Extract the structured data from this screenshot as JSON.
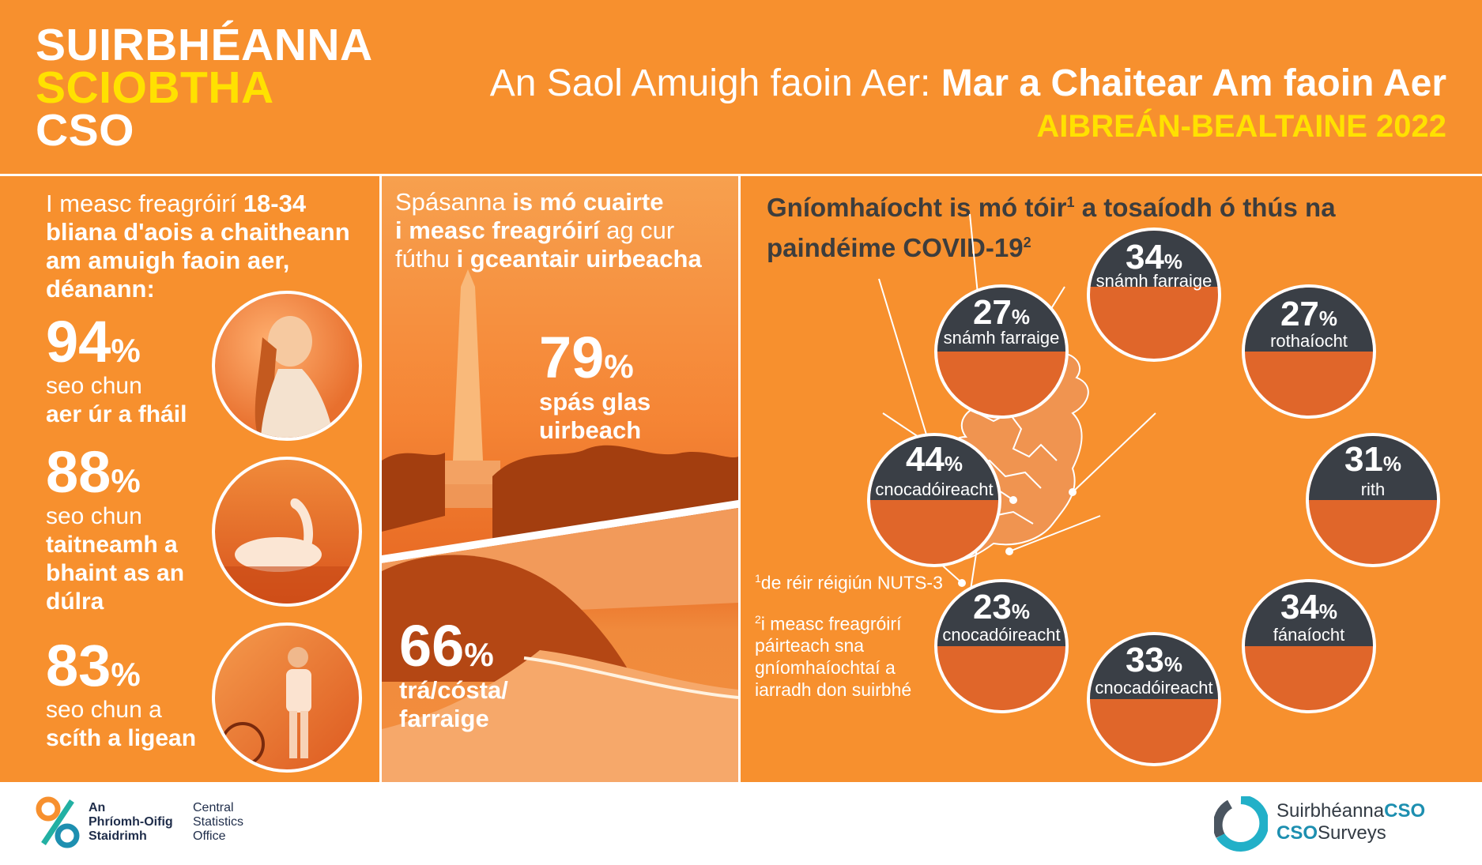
{
  "header": {
    "brand_line1": "SUIRBHÉANNA",
    "brand_line2": "SCIOBTHA",
    "brand_line3": "CSO",
    "title_regular": "An Saol Amuigh faoin Aer: ",
    "title_bold": "Mar a Chaitear Am faoin Aer",
    "subtitle": "AIBREÁN-BEALTAINE 2022"
  },
  "left": {
    "intro_part1": "I measc freagróirí ",
    "intro_bold": "18-34 bliana d'aois a chaitheann am amuigh faoin aer, déanann:",
    "stats": [
      {
        "value": "94",
        "unit": "%",
        "line1": "seo chun",
        "line2": "aer úr a fháil",
        "line3": ""
      },
      {
        "value": "88",
        "unit": "%",
        "line1": "seo chun",
        "line2": "taitneamh a",
        "line3": "bhaint as an dúlra"
      },
      {
        "value": "83",
        "unit": "%",
        "line1": "seo chun a",
        "line2": "scíth a ligean",
        "line3": ""
      }
    ]
  },
  "middle": {
    "intro_part1": "Spásanna ",
    "intro_bold1": "is mó cuairte",
    "intro_bold2": "i measc freagróirí",
    "intro_part2": " ag cur fúthu ",
    "intro_bold3": "i gceantair uirbeacha",
    "stat1": {
      "value": "79",
      "unit": "%",
      "line1": "spás glas",
      "line2": "uirbeach"
    },
    "stat2": {
      "value": "66",
      "unit": "%",
      "line1": "trá/cósta/",
      "line2": "farraige"
    }
  },
  "right": {
    "heading_part1": "Gníomhaíocht is mó tóir",
    "heading_sup1": "1",
    "heading_part2": " a tosaíodh ó thús na paindéime COVID-19",
    "heading_sup2": "2",
    "activities": [
      {
        "value": "34",
        "unit": "%",
        "label": "snámh farraige"
      },
      {
        "value": "27",
        "unit": "%",
        "label": "snámh farraige"
      },
      {
        "value": "27",
        "unit": "%",
        "label": "rothaíocht"
      },
      {
        "value": "44",
        "unit": "%",
        "label": "cnocadóireacht"
      },
      {
        "value": "31",
        "unit": "%",
        "label": "rith"
      },
      {
        "value": "23",
        "unit": "%",
        "label": "cnocadóireacht"
      },
      {
        "value": "34",
        "unit": "%",
        "label": "fánaíocht"
      },
      {
        "value": "33",
        "unit": "%",
        "label": "cnocadóireacht"
      }
    ],
    "note1_sup": "1",
    "note1": "de réir réigiún NUTS-3",
    "note2_sup": "2",
    "note2": "i measc freagróirí páirteach sna gníomhaíochtaí a iarradh don suirbhé"
  },
  "footer": {
    "org_ga_1": "An",
    "org_ga_2": "Phríomh-Oifig",
    "org_ga_3": "Staidrimh",
    "org_en_1": "Central",
    "org_en_2": "Statistics",
    "org_en_3": "Office",
    "surveys_ga_1": "Suirbhéanna",
    "surveys_ga_2": "CSO",
    "surveys_en_1": "CSO",
    "surveys_en_2": "Surveys"
  },
  "colors": {
    "background": "#f7902e",
    "accent_yellow": "#ffe100",
    "dark_panel": "#3a3f46",
    "teal": "#1d8fb0"
  }
}
